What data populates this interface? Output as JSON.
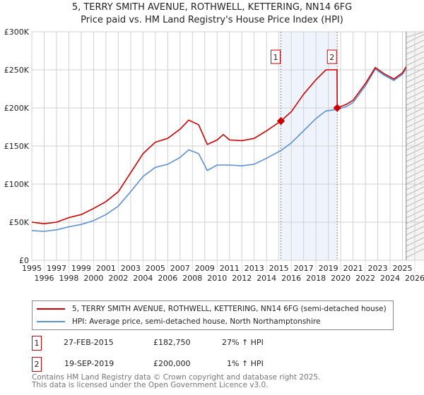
{
  "title": "5, TERRY SMITH AVENUE, ROTHWELL, KETTERING, NN14 6FG",
  "subtitle": "Price paid vs. HM Land Registry's House Price Index (HPI)",
  "chart_data": {
    "type": "line",
    "title": "5, TERRY SMITH AVENUE, ROTHWELL, KETTERING, NN14 6FG",
    "subtitle": "Price paid vs. HM Land Registry's House Price Index (HPI)",
    "xlim": [
      1995,
      2026
    ],
    "ylim": [
      0,
      300000
    ],
    "grid": true,
    "x_ticks": [
      "1995",
      "1996",
      "1997",
      "1998",
      "1999",
      "2000",
      "2001",
      "2002",
      "2003",
      "2004",
      "2005",
      "2006",
      "2007",
      "2008",
      "2009",
      "2010",
      "2011",
      "2012",
      "2013",
      "2014",
      "2015",
      "2016",
      "2017",
      "2018",
      "2019",
      "2020",
      "2021",
      "2022",
      "2023",
      "2024",
      "2025",
      "2026"
    ],
    "y_ticks": [
      {
        "v": 0,
        "label": "£0"
      },
      {
        "v": 50000,
        "label": "£50K"
      },
      {
        "v": 100000,
        "label": "£100K"
      },
      {
        "v": 150000,
        "label": "£150K"
      },
      {
        "v": 200000,
        "label": "£200K"
      },
      {
        "v": 250000,
        "label": "£250K"
      },
      {
        "v": 300000,
        "label": "£300K"
      }
    ],
    "series": [
      {
        "name": "5, TERRY SMITH AVENUE, ROTHWELL, KETTERING, NN14 6FG (semi-detached house)",
        "color": "#cc0000",
        "points": [
          [
            1995,
            50000
          ],
          [
            1996,
            48000
          ],
          [
            1997,
            50000
          ],
          [
            1998,
            56000
          ],
          [
            1999,
            60000
          ],
          [
            2000,
            68000
          ],
          [
            2001,
            77000
          ],
          [
            2002,
            90000
          ],
          [
            2003,
            115000
          ],
          [
            2004,
            140000
          ],
          [
            2005,
            155000
          ],
          [
            2006,
            160000
          ],
          [
            2007,
            172000
          ],
          [
            2007.7,
            184000
          ],
          [
            2008.5,
            178000
          ],
          [
            2009.2,
            152000
          ],
          [
            2010,
            158000
          ],
          [
            2010.5,
            165000
          ],
          [
            2011,
            158000
          ],
          [
            2012,
            157000
          ],
          [
            2013,
            160000
          ],
          [
            2014,
            170000
          ],
          [
            2015.16,
            182750
          ],
          [
            2016,
            195000
          ],
          [
            2017,
            218000
          ],
          [
            2018,
            237000
          ],
          [
            2018.8,
            250000
          ],
          [
            2019.7,
            250000
          ],
          [
            2019.72,
            200000
          ],
          [
            2020.5,
            205000
          ],
          [
            2021,
            210000
          ],
          [
            2022,
            232000
          ],
          [
            2022.8,
            253000
          ],
          [
            2023.5,
            245000
          ],
          [
            2024.3,
            238000
          ],
          [
            2025,
            246000
          ],
          [
            2025.3,
            254000
          ]
        ]
      },
      {
        "name": "HPI: Average price, semi-detached house, North Northamptonshire",
        "color": "#5b8fd6",
        "points": [
          [
            1995,
            39000
          ],
          [
            1996,
            38000
          ],
          [
            1997,
            40000
          ],
          [
            1998,
            44000
          ],
          [
            1999,
            47000
          ],
          [
            2000,
            52000
          ],
          [
            2001,
            60000
          ],
          [
            2002,
            71000
          ],
          [
            2003,
            90000
          ],
          [
            2004,
            110000
          ],
          [
            2005,
            122000
          ],
          [
            2006,
            126000
          ],
          [
            2007,
            135000
          ],
          [
            2007.7,
            145000
          ],
          [
            2008.5,
            140000
          ],
          [
            2009.2,
            118000
          ],
          [
            2010,
            125000
          ],
          [
            2011,
            125000
          ],
          [
            2012,
            124000
          ],
          [
            2013,
            126000
          ],
          [
            2014,
            134000
          ],
          [
            2015.16,
            144000
          ],
          [
            2016,
            154000
          ],
          [
            2017,
            170000
          ],
          [
            2018,
            186000
          ],
          [
            2018.8,
            196000
          ],
          [
            2019.7,
            198000
          ],
          [
            2020.5,
            202000
          ],
          [
            2021,
            207000
          ],
          [
            2022,
            229000
          ],
          [
            2022.8,
            251000
          ],
          [
            2023.5,
            243000
          ],
          [
            2024.3,
            236000
          ],
          [
            2025,
            244000
          ],
          [
            2025.3,
            252000
          ]
        ]
      }
    ],
    "sales": [
      {
        "id": "1",
        "x": 2015.16,
        "y": 182750
      },
      {
        "id": "2",
        "x": 2019.72,
        "y": 200000
      }
    ],
    "shaded_range": [
      2015.16,
      2019.72
    ],
    "hatched_after": 2025.3
  },
  "legend": [
    {
      "label": "5, TERRY SMITH AVENUE, ROTHWELL, KETTERING, NN14 6FG (semi-detached house)",
      "color": "#cc0000"
    },
    {
      "label": "HPI: Average price, semi-detached house, North Northamptonshire",
      "color": "#5b8fd6"
    }
  ],
  "transactions": [
    {
      "id": "1",
      "date": "27-FEB-2015",
      "price": "£182,750",
      "hpi": "27% ↑ HPI"
    },
    {
      "id": "2",
      "date": "19-SEP-2019",
      "price": "£200,000",
      "hpi": "1% ↑ HPI"
    }
  ],
  "footer": [
    "Contains HM Land Registry data © Crown copyright and database right 2025.",
    "This data is licensed under the Open Government Licence v3.0."
  ]
}
